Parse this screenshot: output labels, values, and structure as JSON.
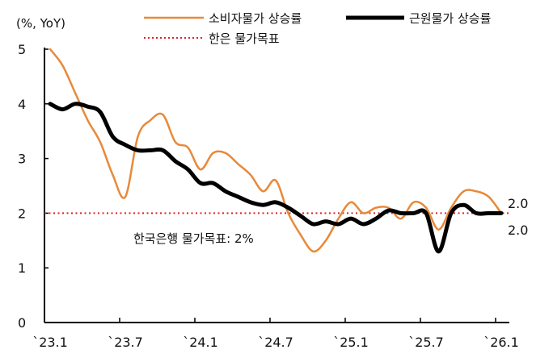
{
  "chart_data": {
    "type": "line",
    "ylabel": "(%, YoY)",
    "ylim": [
      0,
      5
    ],
    "yticks": [
      "0",
      "1",
      "2",
      "3",
      "4",
      "5"
    ],
    "xtick_labels": [
      "`23.1",
      "`23.7",
      "`24.1",
      "`24.7",
      "`25.1",
      "`25.7",
      "`26.1"
    ],
    "x": [
      "2023-01",
      "2023-02",
      "2023-03",
      "2023-04",
      "2023-05",
      "2023-06",
      "2023-07",
      "2023-08",
      "2023-09",
      "2023-10",
      "2023-11",
      "2023-12",
      "2024-01",
      "2024-02",
      "2024-03",
      "2024-04",
      "2024-05",
      "2024-06",
      "2024-07",
      "2024-08",
      "2024-09",
      "2024-10",
      "2024-11",
      "2024-12",
      "2025-01",
      "2025-02",
      "2025-03",
      "2025-04",
      "2025-05",
      "2025-06",
      "2025-07",
      "2025-08",
      "2025-09",
      "2025-10",
      "2025-11",
      "2025-12",
      "2026-01"
    ],
    "series": [
      {
        "name": "소비자물가 상승률",
        "color": "#E8893A",
        "values": [
          5.0,
          4.7,
          4.2,
          3.7,
          3.3,
          2.7,
          2.3,
          3.4,
          3.7,
          3.8,
          3.3,
          3.2,
          2.8,
          3.1,
          3.1,
          2.9,
          2.7,
          2.4,
          2.6,
          2.0,
          1.6,
          1.3,
          1.5,
          1.9,
          2.2,
          2.0,
          2.1,
          2.1,
          1.9,
          2.2,
          2.1,
          1.7,
          2.1,
          2.4,
          2.4,
          2.3,
          2.0
        ]
      },
      {
        "name": "근원물가 상승률",
        "color": "#000000",
        "values": [
          4.0,
          3.9,
          4.0,
          3.95,
          3.85,
          3.4,
          3.25,
          3.15,
          3.15,
          3.15,
          2.95,
          2.8,
          2.55,
          2.55,
          2.4,
          2.3,
          2.2,
          2.15,
          2.2,
          2.1,
          1.95,
          1.8,
          1.85,
          1.8,
          1.9,
          1.8,
          1.9,
          2.05,
          2.0,
          2.0,
          2.0,
          1.3,
          2.0,
          2.15,
          2.0,
          2.0,
          2.0
        ]
      }
    ],
    "reference_line": {
      "name": "한은 물가목표",
      "value": 2,
      "color": "#E0202A",
      "annotation": "한국은행 물가목표: 2%"
    },
    "end_labels": [
      "2.0",
      "2.0"
    ],
    "legend": "top",
    "grid": false
  }
}
